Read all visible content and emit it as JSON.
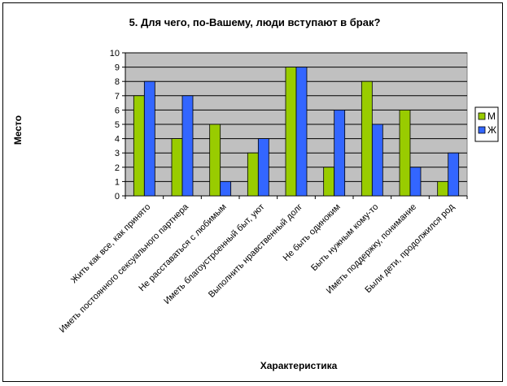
{
  "chart_data": {
    "type": "bar",
    "title": "5. Для чего, по-Вашему, люди вступают в брак?",
    "xlabel": "Характеристика",
    "ylabel": "Место",
    "ylim": [
      0,
      10
    ],
    "yticks": [
      0,
      1,
      2,
      3,
      4,
      5,
      6,
      7,
      8,
      9,
      10
    ],
    "grid": true,
    "legend_position": "right",
    "categories": [
      "Жить как все, как принято",
      "Иметь постоянного сексуального партнера",
      "Не расставаться с любимым",
      "Иметь благоустроенный быт, уют",
      "Выполнить нравственный долг",
      "Не быть одиноким",
      "Быть нужным кому-то",
      "Иметь поддержку, понимание",
      "Были дети, продолжился род"
    ],
    "series": [
      {
        "name": "М",
        "color": "#99cc00",
        "values": [
          7,
          4,
          5,
          3,
          9,
          2,
          8,
          6,
          1
        ]
      },
      {
        "name": "Ж",
        "color": "#3366ff",
        "values": [
          8,
          7,
          1,
          4,
          9,
          6,
          5,
          2,
          3
        ]
      }
    ],
    "plot_background": "#c0c0c0"
  }
}
